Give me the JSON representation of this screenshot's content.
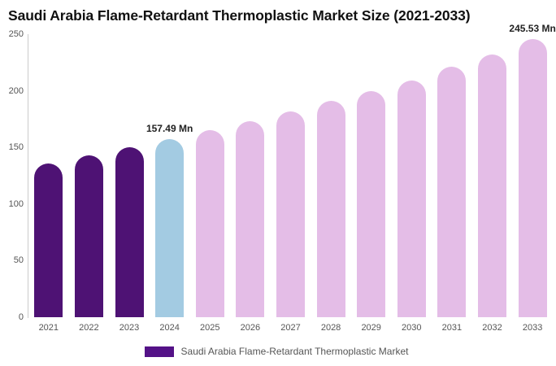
{
  "title": "Saudi Arabia Flame-Retardant Thermoplastic Market Size (2021-2033)",
  "colors": {
    "historical": "#4E1274",
    "current": "#A3CBE2",
    "forecast": "#E4BDE7",
    "legend_swatch": "#541287",
    "axis_line": "#cccccc",
    "tick_text": "#555555",
    "data_label_text": "#222222",
    "title_text": "#111111"
  },
  "legend": {
    "label": "Saudi Arabia Flame-Retardant Thermoplastic Market"
  },
  "y_axis": {
    "ticks": [
      0,
      50,
      100,
      150,
      200,
      250
    ]
  },
  "chart_data": {
    "type": "bar",
    "title": "Saudi Arabia Flame-Retardant Thermoplastic Market Size (2021-2033)",
    "categories": [
      "2021",
      "2022",
      "2023",
      "2024",
      "2025",
      "2026",
      "2027",
      "2028",
      "2029",
      "2030",
      "2031",
      "2032",
      "2033"
    ],
    "values": [
      136,
      143,
      150,
      157.49,
      165,
      173,
      182,
      191,
      200,
      209,
      221,
      232,
      245.53
    ],
    "unit": "Mn",
    "xlabel": "",
    "ylabel": "",
    "ylim": [
      0,
      250
    ],
    "grid": false,
    "legend_position": "bottom",
    "series_roles": [
      "historical",
      "historical",
      "historical",
      "current",
      "forecast",
      "forecast",
      "forecast",
      "forecast",
      "forecast",
      "forecast",
      "forecast",
      "forecast",
      "forecast"
    ],
    "annotations": [
      {
        "category": "2024",
        "text": "157.49 Mn"
      },
      {
        "category": "2033",
        "text": "245.53 Mn"
      }
    ]
  }
}
